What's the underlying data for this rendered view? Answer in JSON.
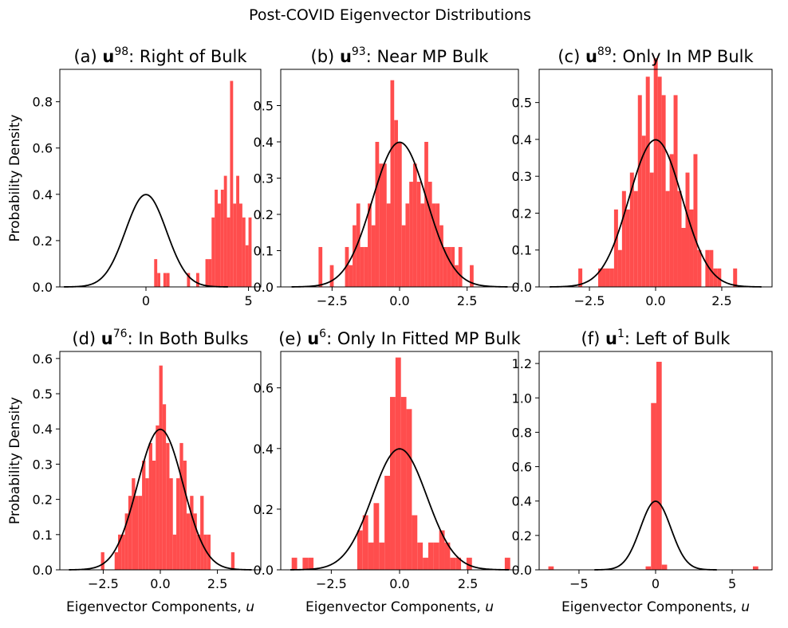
{
  "figure": {
    "suptitle": "Post-COVID Eigenvector Distributions"
  },
  "colors": {
    "histogram": "#ff4d4d",
    "curve": "#000000",
    "axes": "#000000"
  },
  "chart_data": [
    {
      "type": "bar",
      "title": {
        "pre": "(a) ",
        "bold": "u",
        "sup": "98",
        "post": ": Right of Bulk"
      },
      "xlabel": {
        "text": "",
        "italic": ""
      },
      "ylabel": "Probability Density",
      "xlim": [
        -4.2,
        5.6
      ],
      "ylim": [
        0,
        0.94
      ],
      "xticks": [
        0,
        5
      ],
      "xticklabels": [
        "0",
        "5"
      ],
      "yticks": [
        0,
        0.2,
        0.4,
        0.6,
        0.8
      ],
      "yticklabels": [
        "0.0",
        "0.2",
        "0.4",
        "0.6",
        "0.8"
      ],
      "bins": [
        [
          0.4,
          0.55,
          0.12
        ],
        [
          0.55,
          0.7,
          0.06
        ],
        [
          0.85,
          1.0,
          0.06
        ],
        [
          1.0,
          1.15,
          0.06
        ],
        [
          2.0,
          2.15,
          0.06
        ],
        [
          2.45,
          2.6,
          0.06
        ],
        [
          2.9,
          3.05,
          0.12
        ],
        [
          3.05,
          3.2,
          0.12
        ],
        [
          3.2,
          3.35,
          0.3
        ],
        [
          3.35,
          3.5,
          0.42
        ],
        [
          3.5,
          3.65,
          0.36
        ],
        [
          3.65,
          3.8,
          0.42
        ],
        [
          3.8,
          3.95,
          0.48
        ],
        [
          3.95,
          4.1,
          0.3
        ],
        [
          4.1,
          4.25,
          0.89
        ],
        [
          4.25,
          4.4,
          0.36
        ],
        [
          4.4,
          4.55,
          0.48
        ],
        [
          4.55,
          4.7,
          0.36
        ],
        [
          4.7,
          4.85,
          0.3
        ],
        [
          4.85,
          5.0,
          0.18
        ],
        [
          5.0,
          5.15,
          0.3
        ]
      ],
      "curve": {
        "mu": 0,
        "sigma": 1,
        "x": [
          -4,
          4
        ]
      }
    },
    {
      "type": "bar",
      "title": {
        "pre": "(b) ",
        "bold": "u",
        "sup": "93",
        "post": ": Near MP Bulk"
      },
      "xlabel": {
        "text": "",
        "italic": ""
      },
      "ylabel": "",
      "xlim": [
        -4.4,
        4.4
      ],
      "ylim": [
        0,
        0.6
      ],
      "xticks": [
        -2.5,
        0,
        2.5
      ],
      "xticklabels": [
        "−2.5",
        "0.0",
        "2.5"
      ],
      "yticks": [
        0,
        0.1,
        0.2,
        0.3,
        0.4,
        0.5
      ],
      "yticklabels": [
        "0.0",
        "0.1",
        "0.2",
        "0.3",
        "0.4",
        "0.5"
      ],
      "bins": [
        [
          -3.0,
          -2.86,
          0.11
        ],
        [
          -2.86,
          -2.72,
          0
        ],
        [
          -2.72,
          -2.58,
          0
        ],
        [
          -2.58,
          -2.44,
          0.06
        ],
        [
          -2.44,
          -2.3,
          0
        ],
        [
          -2.3,
          -2.16,
          0
        ],
        [
          -2.16,
          -2.02,
          0
        ],
        [
          -2.02,
          -1.88,
          0.11
        ],
        [
          -1.88,
          -1.74,
          0.06
        ],
        [
          -1.74,
          -1.6,
          0.17
        ],
        [
          -1.6,
          -1.46,
          0.23
        ],
        [
          -1.46,
          -1.32,
          0.11
        ],
        [
          -1.32,
          -1.18,
          0.11
        ],
        [
          -1.18,
          -1.04,
          0.23
        ],
        [
          -1.04,
          -0.9,
          0.17
        ],
        [
          -0.9,
          -0.76,
          0.4
        ],
        [
          -0.76,
          -0.62,
          0.34
        ],
        [
          -0.62,
          -0.48,
          0.34
        ],
        [
          -0.48,
          -0.34,
          0.23
        ],
        [
          -0.34,
          -0.2,
          0.57
        ],
        [
          -0.2,
          -0.06,
          0.46
        ],
        [
          -0.06,
          0.08,
          0.4
        ],
        [
          0.08,
          0.22,
          0.17
        ],
        [
          0.22,
          0.36,
          0.23
        ],
        [
          0.36,
          0.5,
          0.29
        ],
        [
          0.5,
          0.64,
          0.34
        ],
        [
          0.64,
          0.78,
          0.29
        ],
        [
          0.78,
          0.92,
          0.23
        ],
        [
          0.92,
          1.06,
          0.4
        ],
        [
          1.06,
          1.2,
          0.29
        ],
        [
          1.2,
          1.34,
          0.23
        ],
        [
          1.34,
          1.48,
          0.23
        ],
        [
          1.48,
          1.62,
          0.17
        ],
        [
          1.62,
          1.76,
          0.11
        ],
        [
          1.76,
          1.9,
          0.11
        ],
        [
          1.9,
          2.04,
          0.11
        ],
        [
          2.04,
          2.18,
          0.06
        ],
        [
          2.18,
          2.32,
          0.11
        ],
        [
          2.32,
          2.46,
          0
        ],
        [
          2.46,
          2.6,
          0
        ],
        [
          2.6,
          2.74,
          0.06
        ]
      ],
      "curve": {
        "mu": 0,
        "sigma": 1,
        "x": [
          -4,
          4
        ]
      }
    },
    {
      "type": "bar",
      "title": {
        "pre": "(c) ",
        "bold": "u",
        "sup": "89",
        "post": ": Only In MP Bulk"
      },
      "xlabel": {
        "text": "",
        "italic": ""
      },
      "ylabel": "",
      "xlim": [
        -4.4,
        4.4
      ],
      "ylim": [
        0,
        0.59
      ],
      "xticks": [
        -2.5,
        0,
        2.5
      ],
      "xticklabels": [
        "−2.5",
        "0.0",
        "2.5"
      ],
      "yticks": [
        0,
        0.1,
        0.2,
        0.3,
        0.4,
        0.5
      ],
      "yticklabels": [
        "0.0",
        "0.1",
        "0.2",
        "0.3",
        "0.4",
        "0.5"
      ],
      "bins": [
        [
          -2.92,
          -2.77,
          0.05
        ],
        [
          -2.77,
          -2.62,
          0
        ],
        [
          -2.62,
          -2.47,
          0
        ],
        [
          -2.47,
          -2.32,
          0
        ],
        [
          -2.32,
          -2.17,
          0
        ],
        [
          -2.17,
          -2.02,
          0.05
        ],
        [
          -2.02,
          -1.87,
          0.05
        ],
        [
          -1.87,
          -1.72,
          0.05
        ],
        [
          -1.72,
          -1.57,
          0.05
        ],
        [
          -1.57,
          -1.42,
          0.21
        ],
        [
          -1.42,
          -1.27,
          0.1
        ],
        [
          -1.27,
          -1.12,
          0.26
        ],
        [
          -1.12,
          -0.97,
          0.21
        ],
        [
          -0.97,
          -0.82,
          0.31
        ],
        [
          -0.82,
          -0.67,
          0.26
        ],
        [
          -0.67,
          -0.52,
          0.52
        ],
        [
          -0.52,
          -0.37,
          0.41
        ],
        [
          -0.37,
          -0.22,
          0.57
        ],
        [
          -0.22,
          -0.07,
          0.31
        ],
        [
          -0.07,
          0.08,
          0.62
        ],
        [
          0.08,
          0.23,
          0.57
        ],
        [
          0.23,
          0.38,
          0.52
        ],
        [
          0.38,
          0.53,
          0.26
        ],
        [
          0.53,
          0.68,
          0.36
        ],
        [
          0.68,
          0.83,
          0.52
        ],
        [
          0.83,
          0.98,
          0.26
        ],
        [
          0.98,
          1.13,
          0.16
        ],
        [
          1.13,
          1.28,
          0.31
        ],
        [
          1.28,
          1.43,
          0.21
        ],
        [
          1.43,
          1.58,
          0.36
        ],
        [
          1.58,
          1.73,
          0.1
        ],
        [
          1.73,
          1.88,
          0
        ],
        [
          1.88,
          2.03,
          0.1
        ],
        [
          2.03,
          2.18,
          0.1
        ],
        [
          2.18,
          2.33,
          0.05
        ],
        [
          2.33,
          2.48,
          0.05
        ],
        [
          2.48,
          2.63,
          0
        ],
        [
          2.63,
          2.78,
          0
        ],
        [
          2.78,
          2.93,
          0
        ],
        [
          2.93,
          3.08,
          0.05
        ]
      ],
      "curve": {
        "mu": 0,
        "sigma": 1,
        "x": [
          -4,
          4
        ]
      }
    },
    {
      "type": "bar",
      "title": {
        "pre": "(d) ",
        "bold": "u",
        "sup": "76",
        "post": ": In Both Bulks"
      },
      "xlabel": {
        "text": "Eigenvector Components, ",
        "italic": "u"
      },
      "ylabel": "Probability Density",
      "xlim": [
        -4.4,
        4.4
      ],
      "ylim": [
        0,
        0.62
      ],
      "xticks": [
        -2.5,
        0,
        2.5
      ],
      "xticklabels": [
        "−2.5",
        "0.0",
        "2.5"
      ],
      "yticks": [
        0,
        0.1,
        0.2,
        0.3,
        0.4,
        0.5,
        0.6
      ],
      "yticklabels": [
        "0.0",
        "0.1",
        "0.2",
        "0.3",
        "0.4",
        "0.5",
        "0.6"
      ],
      "bins": [
        [
          -2.6,
          -2.45,
          0.05
        ],
        [
          -2.45,
          -2.3,
          0
        ],
        [
          -2.3,
          -2.15,
          0
        ],
        [
          -2.15,
          -2.0,
          0
        ],
        [
          -2.0,
          -1.85,
          0.05
        ],
        [
          -1.85,
          -1.7,
          0.1
        ],
        [
          -1.7,
          -1.55,
          0.1
        ],
        [
          -1.55,
          -1.4,
          0.16
        ],
        [
          -1.4,
          -1.25,
          0.21
        ],
        [
          -1.25,
          -1.1,
          0.26
        ],
        [
          -1.1,
          -0.95,
          0.21
        ],
        [
          -0.95,
          -0.8,
          0.21
        ],
        [
          -0.8,
          -0.65,
          0.31
        ],
        [
          -0.65,
          -0.5,
          0.26
        ],
        [
          -0.5,
          -0.35,
          0.36
        ],
        [
          -0.35,
          -0.2,
          0.31
        ],
        [
          -0.2,
          -0.05,
          0.41
        ],
        [
          -0.05,
          0.1,
          0.58
        ],
        [
          0.1,
          0.25,
          0.47
        ],
        [
          0.25,
          0.4,
          0.36
        ],
        [
          0.4,
          0.55,
          0.26
        ],
        [
          0.55,
          0.7,
          0.1
        ],
        [
          0.7,
          0.85,
          0.26
        ],
        [
          0.85,
          1.0,
          0.36
        ],
        [
          1.0,
          1.15,
          0.31
        ],
        [
          1.15,
          1.3,
          0.16
        ],
        [
          1.3,
          1.45,
          0.21
        ],
        [
          1.45,
          1.6,
          0.16
        ],
        [
          1.6,
          1.75,
          0.1
        ],
        [
          1.75,
          1.9,
          0.21
        ],
        [
          1.9,
          2.05,
          0.1
        ],
        [
          2.05,
          2.2,
          0.1
        ],
        [
          2.2,
          2.35,
          0
        ],
        [
          2.35,
          2.5,
          0
        ],
        [
          2.5,
          2.65,
          0
        ],
        [
          2.65,
          2.8,
          0
        ],
        [
          2.8,
          2.95,
          0
        ],
        [
          2.95,
          3.1,
          0
        ],
        [
          3.1,
          3.25,
          0.05
        ]
      ],
      "curve": {
        "mu": 0,
        "sigma": 1,
        "x": [
          -4,
          4
        ]
      }
    },
    {
      "type": "bar",
      "title": {
        "pre": "(e) ",
        "bold": "u",
        "sup": "6",
        "post": ": Only In Fitted MP Bulk"
      },
      "xlabel": {
        "text": "Eigenvector Components, ",
        "italic": "u"
      },
      "ylabel": "",
      "xlim": [
        -4.35,
        4.35
      ],
      "ylim": [
        0,
        0.72
      ],
      "xticks": [
        -2.5,
        0,
        2.5
      ],
      "xticklabels": [
        "−2.5",
        "0.0",
        "2.5"
      ],
      "yticks": [
        0,
        0.2,
        0.4,
        0.6
      ],
      "yticklabels": [
        "0.0",
        "0.2",
        "0.4",
        "0.6"
      ],
      "bins": [
        [
          -3.95,
          -3.75,
          0.04
        ],
        [
          -3.75,
          -3.55,
          0
        ],
        [
          -3.55,
          -3.35,
          0.04
        ],
        [
          -3.35,
          -3.15,
          0.04
        ],
        [
          -3.15,
          -2.95,
          0
        ],
        [
          -2.95,
          -2.75,
          0
        ],
        [
          -2.75,
          -2.55,
          0
        ],
        [
          -2.55,
          -2.35,
          0
        ],
        [
          -2.35,
          -2.15,
          0
        ],
        [
          -2.15,
          -1.95,
          0
        ],
        [
          -1.95,
          -1.75,
          0
        ],
        [
          -1.75,
          -1.55,
          0
        ],
        [
          -1.55,
          -1.35,
          0.13
        ],
        [
          -1.35,
          -1.15,
          0.18
        ],
        [
          -1.15,
          -0.95,
          0.09
        ],
        [
          -0.95,
          -0.75,
          0.22
        ],
        [
          -0.75,
          -0.55,
          0.09
        ],
        [
          -0.55,
          -0.35,
          0.31
        ],
        [
          -0.35,
          -0.15,
          0.57
        ],
        [
          -0.15,
          0.05,
          0.7
        ],
        [
          0.05,
          0.25,
          0.57
        ],
        [
          0.25,
          0.45,
          0.53
        ],
        [
          0.45,
          0.65,
          0.18
        ],
        [
          0.65,
          0.85,
          0.09
        ],
        [
          0.85,
          1.05,
          0.04
        ],
        [
          1.05,
          1.25,
          0.09
        ],
        [
          1.25,
          1.45,
          0.09
        ],
        [
          1.45,
          1.65,
          0.13
        ],
        [
          1.65,
          1.85,
          0.09
        ],
        [
          1.85,
          2.05,
          0.04
        ],
        [
          2.05,
          2.25,
          0.04
        ],
        [
          2.25,
          2.45,
          0
        ],
        [
          2.45,
          2.65,
          0.04
        ],
        [
          2.65,
          2.85,
          0
        ],
        [
          2.85,
          3.05,
          0
        ],
        [
          3.05,
          3.25,
          0
        ],
        [
          3.25,
          3.45,
          0
        ],
        [
          3.45,
          3.65,
          0
        ],
        [
          3.65,
          3.85,
          0
        ],
        [
          3.85,
          4.05,
          0.04
        ]
      ],
      "curve": {
        "mu": 0,
        "sigma": 1,
        "x": [
          -4,
          4
        ]
      }
    },
    {
      "type": "bar",
      "title": {
        "pre": "(f) ",
        "bold": "u",
        "sup": "1",
        "post": ": Left of Bulk"
      },
      "xlabel": {
        "text": "Eigenvector Components, ",
        "italic": "u"
      },
      "ylabel": "",
      "xlim": [
        -7.6,
        7.6
      ],
      "ylim": [
        0,
        1.27
      ],
      "xticks": [
        -5,
        0,
        5
      ],
      "xticklabels": [
        "−5",
        "0",
        "5"
      ],
      "yticks": [
        0,
        0.2,
        0.4,
        0.6,
        0.8,
        1.0,
        1.2
      ],
      "yticklabels": [
        "0.0",
        "0.2",
        "0.4",
        "0.6",
        "0.8",
        "1.0",
        "1.2"
      ],
      "bins": [
        [
          -7.0,
          -6.65,
          0.02
        ],
        [
          -0.65,
          -0.3,
          0.02
        ],
        [
          -0.3,
          0.05,
          0.97
        ],
        [
          0.05,
          0.4,
          1.21
        ],
        [
          0.4,
          0.75,
          0.03
        ],
        [
          6.35,
          6.7,
          0.02
        ]
      ],
      "curve": {
        "mu": 0,
        "sigma": 1,
        "x": [
          -4,
          4
        ]
      }
    }
  ]
}
